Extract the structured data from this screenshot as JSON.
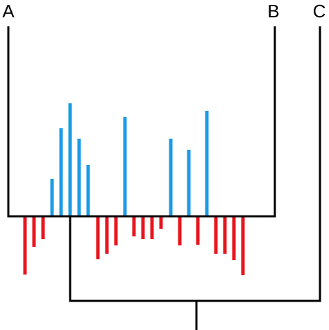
{
  "nodes": [
    {
      "label": "A"
    },
    {
      "label": "B"
    },
    {
      "label": "C"
    }
  ]
}
